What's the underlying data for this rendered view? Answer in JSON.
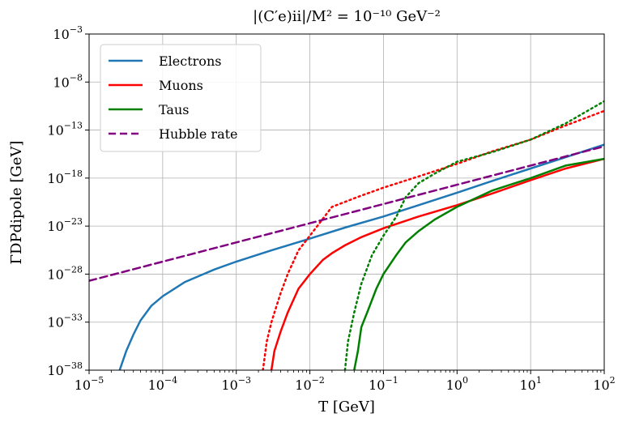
{
  "chart_data": {
    "type": "line",
    "title": "|(C′e)ii|/M² = 10⁻¹⁰ GeV⁻²",
    "xlabel": "T [GeV]",
    "ylabel": "ΓDPdipole [GeV]",
    "xscale": "log",
    "yscale": "log",
    "xlim": [
      1e-05,
      100
    ],
    "ylim": [
      1e-38,
      0.001
    ],
    "grid": true,
    "legend_position": "top-left",
    "x_tick_labels": [
      {
        "base": "10",
        "exp": "−5",
        "value": 1e-05
      },
      {
        "base": "10",
        "exp": "−4",
        "value": 0.0001
      },
      {
        "base": "10",
        "exp": "−3",
        "value": 0.001
      },
      {
        "base": "10",
        "exp": "−2",
        "value": 0.01
      },
      {
        "base": "10",
        "exp": "−1",
        "value": 0.1
      },
      {
        "base": "10",
        "exp": "0",
        "value": 1
      },
      {
        "base": "10",
        "exp": "1",
        "value": 10
      },
      {
        "base": "10",
        "exp": "2",
        "value": 100
      }
    ],
    "y_tick_labels": [
      {
        "base": "10",
        "exp": "−3",
        "value": 0.001
      },
      {
        "base": "10",
        "exp": "−8",
        "value": 1e-08
      },
      {
        "base": "10",
        "exp": "−13",
        "value": 1e-13
      },
      {
        "base": "10",
        "exp": "−18",
        "value": 1e-18
      },
      {
        "base": "10",
        "exp": "−23",
        "value": 1e-23
      },
      {
        "base": "10",
        "exp": "−28",
        "value": 1e-28
      },
      {
        "base": "10",
        "exp": "−33",
        "value": 1e-33
      },
      {
        "base": "10",
        "exp": "−38",
        "value": 1e-38
      }
    ],
    "series": [
      {
        "name": "Electrons",
        "color": "#1f77b4",
        "style": "solid",
        "points": [
          [
            2.6e-05,
            1e-38
          ],
          [
            3.2e-05,
            1e-36
          ],
          [
            4e-05,
            5e-35
          ],
          [
            5e-05,
            1.5e-33
          ],
          [
            7e-05,
            5e-32
          ],
          [
            0.0001,
            5e-31
          ],
          [
            0.0002,
            1.5e-29
          ],
          [
            0.0005,
            3e-28
          ],
          [
            0.001,
            2e-27
          ],
          [
            0.003,
            3e-26
          ],
          [
            0.01,
            5e-25
          ],
          [
            0.03,
            7e-24
          ],
          [
            0.1,
            1e-22
          ],
          [
            0.3,
            1.5e-21
          ],
          [
            1,
            3e-20
          ],
          [
            3,
            5e-19
          ],
          [
            10,
            1e-17
          ],
          [
            30,
            1.5e-16
          ],
          [
            100,
            3e-15
          ]
        ]
      },
      {
        "name": "Muons",
        "color": "#ff0000",
        "style": "solid",
        "points": [
          [
            0.003,
            1e-38
          ],
          [
            0.0033,
            1e-36
          ],
          [
            0.004,
            1e-34
          ],
          [
            0.005,
            1e-32
          ],
          [
            0.007,
            3e-30
          ],
          [
            0.01,
            1e-28
          ],
          [
            0.015,
            3e-27
          ],
          [
            0.02,
            1.5e-26
          ],
          [
            0.03,
            1e-25
          ],
          [
            0.05,
            7e-25
          ],
          [
            0.1,
            6e-24
          ],
          [
            0.3,
            1e-22
          ],
          [
            1,
            1.5e-21
          ],
          [
            3,
            2.5e-20
          ],
          [
            10,
            6e-19
          ],
          [
            30,
            1e-17
          ],
          [
            100,
            1e-16
          ]
        ]
      },
      {
        "name": "Muons (dotted)",
        "color": "#ff0000",
        "style": "dotted",
        "points": [
          [
            0.0023,
            1e-38
          ],
          [
            0.0026,
            1e-35
          ],
          [
            0.003,
            1e-33
          ],
          [
            0.004,
            1e-30
          ],
          [
            0.005,
            1e-28
          ],
          [
            0.007,
            3e-26
          ],
          [
            0.01,
            1e-24
          ],
          [
            0.02,
            1e-21
          ],
          [
            0.05,
            1.5e-20
          ],
          [
            0.1,
            1e-19
          ],
          [
            0.3,
            1.5e-18
          ],
          [
            1,
            3e-17
          ],
          [
            3,
            6e-16
          ],
          [
            10,
            1e-14
          ],
          [
            30,
            3e-13
          ],
          [
            100,
            1e-11
          ]
        ]
      },
      {
        "name": "Taus",
        "color": "#008000",
        "style": "solid",
        "points": [
          [
            0.04,
            1e-38
          ],
          [
            0.045,
            1e-36
          ],
          [
            0.05,
            3e-34
          ],
          [
            0.06,
            1e-32
          ],
          [
            0.08,
            3e-30
          ],
          [
            0.1,
            1e-28
          ],
          [
            0.15,
            1e-26
          ],
          [
            0.2,
            2e-25
          ],
          [
            0.3,
            3e-24
          ],
          [
            0.5,
            5e-23
          ],
          [
            1,
            1e-21
          ],
          [
            3,
            5e-20
          ],
          [
            10,
            1e-18
          ],
          [
            30,
            2e-17
          ],
          [
            100,
            1e-16
          ]
        ]
      },
      {
        "name": "Taus (dotted)",
        "color": "#008000",
        "style": "dotted",
        "points": [
          [
            0.03,
            1e-38
          ],
          [
            0.033,
            1e-35
          ],
          [
            0.04,
            1e-32
          ],
          [
            0.05,
            1e-29
          ],
          [
            0.07,
            1e-26
          ],
          [
            0.1,
            1e-24
          ],
          [
            0.15,
            1e-22
          ],
          [
            0.2,
            1e-20
          ],
          [
            0.3,
            3e-19
          ],
          [
            0.5,
            3e-18
          ],
          [
            1,
            5e-17
          ],
          [
            3,
            5e-16
          ],
          [
            10,
            1e-14
          ],
          [
            30,
            5e-13
          ],
          [
            100,
            1e-10
          ]
        ]
      },
      {
        "name": "Hubble rate",
        "color": "#800080",
        "style": "dashed",
        "points": [
          [
            1e-05,
            2e-29
          ],
          [
            0.0001,
            2e-27
          ],
          [
            0.001,
            2e-25
          ],
          [
            0.01,
            2e-23
          ],
          [
            0.1,
            2e-21
          ],
          [
            1,
            2e-19
          ],
          [
            10,
            2e-17
          ],
          [
            100,
            2e-15
          ]
        ]
      }
    ],
    "legend": [
      {
        "label": "Electrons",
        "color": "#1f77b4",
        "style": "solid"
      },
      {
        "label": "Muons",
        "color": "#ff0000",
        "style": "solid"
      },
      {
        "label": "Taus",
        "color": "#008000",
        "style": "solid"
      },
      {
        "label": "Hubble rate",
        "color": "#800080",
        "style": "dashed"
      }
    ]
  }
}
